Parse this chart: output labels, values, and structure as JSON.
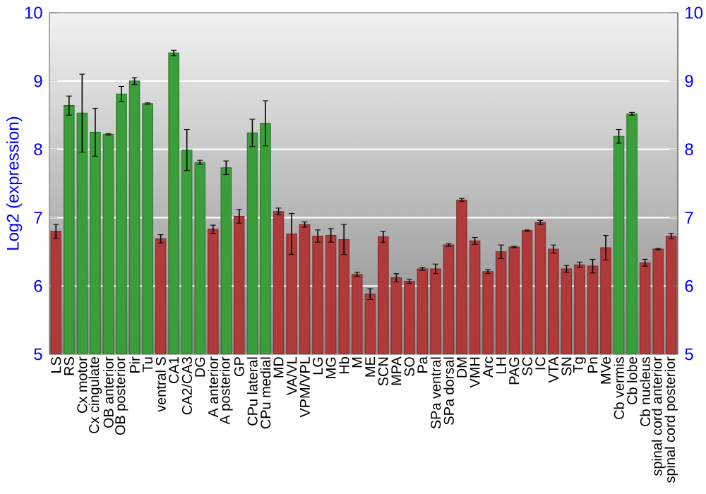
{
  "chart_data": {
    "type": "bar",
    "ylabel": "Log2 (expression)",
    "categories": [
      "LS",
      "RS",
      "Cx motor",
      "Cx cingulate",
      "OB anterior",
      "OB posterior",
      "Pir",
      "Tu",
      "ventral S",
      "CA1",
      "CA2/CA3",
      "DG",
      "A anterior",
      "A posterior",
      "GP",
      "CPu lateral",
      "CPu medial",
      "MD",
      "VA/VL",
      "VPM/VPL",
      "LG",
      "MG",
      "Hb",
      "M",
      "ME",
      "SCN",
      "MPA",
      "SO",
      "Pa",
      "SPa ventral",
      "SPa dorsal",
      "DM",
      "VMH",
      "Arc",
      "LH",
      "PAG",
      "SC",
      "IC",
      "VTA",
      "SN",
      "Tg",
      "Pn",
      "MVe",
      "Cb vermis",
      "Cb lobe",
      "Cb nucleus",
      "spinal cord anterior",
      "spinal cord posterior"
    ],
    "values": [
      6.8,
      8.64,
      8.53,
      8.25,
      8.22,
      8.81,
      9.0,
      8.67,
      6.69,
      9.41,
      7.99,
      7.81,
      6.83,
      7.73,
      7.02,
      8.24,
      8.38,
      7.09,
      6.76,
      6.9,
      6.73,
      6.74,
      6.68,
      6.17,
      5.88,
      6.72,
      6.12,
      6.07,
      6.25,
      6.25,
      6.6,
      7.26,
      6.66,
      6.21,
      6.5,
      6.57,
      6.81,
      6.93,
      6.54,
      6.25,
      6.31,
      6.29,
      6.56,
      8.19,
      8.52,
      6.34,
      6.54,
      6.73
    ],
    "errors": [
      0.1,
      0.14,
      0.57,
      0.35,
      0.01,
      0.11,
      0.05,
      0.01,
      0.06,
      0.04,
      0.3,
      0.03,
      0.06,
      0.1,
      0.1,
      0.2,
      0.33,
      0.05,
      0.3,
      0.04,
      0.09,
      0.1,
      0.22,
      0.03,
      0.08,
      0.08,
      0.06,
      0.03,
      0.02,
      0.07,
      0.02,
      0.02,
      0.05,
      0.03,
      0.1,
      0.01,
      0.01,
      0.03,
      0.06,
      0.05,
      0.04,
      0.1,
      0.18,
      0.1,
      0.02,
      0.05,
      0.01,
      0.04
    ],
    "colors": [
      "#b03a3a",
      "#3a9e3a",
      "#3a9e3a",
      "#3a9e3a",
      "#3a9e3a",
      "#3a9e3a",
      "#3a9e3a",
      "#3a9e3a",
      "#b03a3a",
      "#3a9e3a",
      "#3a9e3a",
      "#3a9e3a",
      "#b03a3a",
      "#3a9e3a",
      "#b03a3a",
      "#3a9e3a",
      "#3a9e3a",
      "#b03a3a",
      "#b03a3a",
      "#b03a3a",
      "#b03a3a",
      "#b03a3a",
      "#b03a3a",
      "#b03a3a",
      "#b03a3a",
      "#b03a3a",
      "#b03a3a",
      "#b03a3a",
      "#b03a3a",
      "#b03a3a",
      "#b03a3a",
      "#b03a3a",
      "#b03a3a",
      "#b03a3a",
      "#b03a3a",
      "#b03a3a",
      "#b03a3a",
      "#b03a3a",
      "#b03a3a",
      "#b03a3a",
      "#b03a3a",
      "#b03a3a",
      "#b03a3a",
      "#3a9e3a",
      "#3a9e3a",
      "#b03a3a",
      "#b03a3a",
      "#b03a3a"
    ],
    "ylim": [
      5,
      10
    ],
    "yticks": [
      5,
      6,
      7,
      8,
      9,
      10
    ],
    "y2lim": [
      5,
      10
    ],
    "y2ticks": [
      5,
      6,
      7,
      8,
      9,
      10
    ],
    "grid": "y"
  }
}
